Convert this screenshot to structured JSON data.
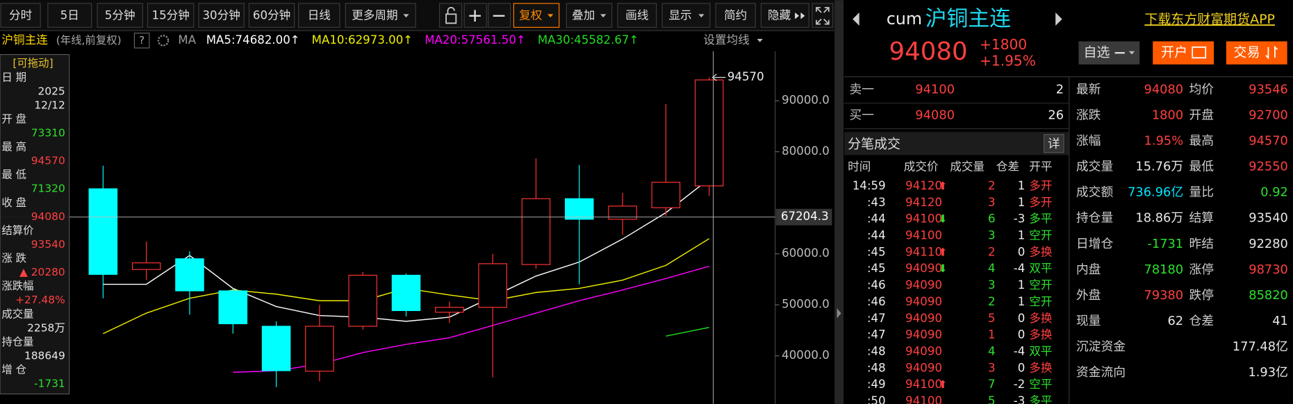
{
  "toolbar": {
    "periods": [
      "分时",
      "5日",
      "5分钟",
      "15分钟",
      "30分钟",
      "60分钟",
      "日线",
      "更多周期"
    ],
    "buttons": [
      "复权",
      "叠加",
      "画线",
      "显示",
      "简约",
      "隐藏"
    ]
  },
  "chart_info": {
    "symbol": "沪铜主连",
    "mode": "(年线,前复权)",
    "help": "?",
    "ma": "MA",
    "settings": "设置均线"
  },
  "info_panel": {
    "drag": "[可拖动]",
    "items": [
      {
        "label": "日 期",
        "values": [
          "2025",
          "12/12"
        ],
        "color": "#e8e8e8"
      },
      {
        "label": "开 盘",
        "values": [
          "73310"
        ],
        "color": "#2ee02e"
      },
      {
        "label": "最 高",
        "values": [
          "94570"
        ],
        "color": "#ff4040"
      },
      {
        "label": "最 低",
        "values": [
          "71320"
        ],
        "color": "#2ee02e"
      },
      {
        "label": "收 盘",
        "values": [
          "94080"
        ],
        "color": "#ff4040"
      },
      {
        "label": "结算价",
        "values": [
          "93540"
        ],
        "color": "#ff4040"
      },
      {
        "label": "涨 跌",
        "values": [
          "▲ 20280"
        ],
        "color": "#ff4040"
      },
      {
        "label": "涨跌幅",
        "values": [
          "+27.48%"
        ],
        "color": "#ff4040"
      },
      {
        "label": "成交量",
        "values": [
          "2258万"
        ],
        "color": "#e8e8e8"
      },
      {
        "label": "持仓量",
        "values": [
          "188649"
        ],
        "color": "#e8e8e8"
      },
      {
        "label": "增 仓",
        "values": [
          "-1731"
        ],
        "color": "#2ee02e"
      }
    ]
  },
  "chart_data": {
    "type": "candlestick",
    "categories": [
      null,
      null,
      null,
      null,
      null,
      null,
      null,
      null,
      null,
      null,
      null,
      null,
      null,
      null,
      null
    ],
    "open": [
      72742,
      56935,
      59032,
      52742,
      45806,
      37000,
      45806,
      55806,
      48548,
      49516,
      57903,
      70806,
      66774,
      69032,
      73310
    ],
    "close": [
      55968,
      58226,
      52742,
      46290,
      37097,
      45806,
      55806,
      48871,
      49516,
      58065,
      70806,
      66774,
      69355,
      74032,
      94080
    ],
    "high": [
      77258,
      62419,
      60484,
      53226,
      46774,
      50000,
      56452,
      56129,
      50645,
      60000,
      78710,
      77419,
      71935,
      89355,
      94570
    ],
    "low": [
      51290,
      54839,
      48065,
      44355,
      33871,
      35000,
      45161,
      47742,
      46452,
      35806,
      57097,
      54032,
      63710,
      67419,
      71320
    ],
    "up_color": "#ff3333",
    "down_color": "#00ffff",
    "series": [
      {
        "name": "MA5:74682.00↑",
        "color": "#ffffff",
        "values": [
          54032,
          54032,
          59677,
          53226,
          49677,
          47903,
          47581,
          46774,
          47581,
          51613,
          55645,
          58387,
          62903,
          68065,
          74682
        ]
      },
      {
        "name": "MA10:62973.00↑",
        "color": "#f0f000",
        "values": [
          44355,
          48387,
          51290,
          52903,
          52097,
          50806,
          50806,
          53226,
          51935,
          50806,
          52419,
          53226,
          54839,
          57742,
          62973
        ]
      },
      {
        "name": "MA20:57561.50↑",
        "color": "#ff00ff",
        "values": [
          null,
          null,
          null,
          36774,
          37097,
          38387,
          40645,
          42258,
          43548,
          45968,
          48387,
          50806,
          52903,
          55161,
          57561.5
        ]
      },
      {
        "name": "MA30:45582.67↑",
        "color": "#22dd22",
        "values": [
          null,
          null,
          null,
          null,
          null,
          null,
          null,
          null,
          null,
          null,
          null,
          null,
          null,
          43871,
          45582.67
        ]
      }
    ],
    "ylim": [
      30600,
      99700
    ],
    "yticks": [
      {
        "value": 40000,
        "label": "40000.0"
      },
      {
        "value": 50000,
        "label": "50000.0"
      },
      {
        "value": 60000,
        "label": "60000.0"
      },
      {
        "value": 80000,
        "label": "80000.0"
      },
      {
        "value": 90000,
        "label": "90000.0"
      }
    ],
    "crosshair": 67204.3
  },
  "quote": {
    "code": "cum",
    "name": "沪铜主连",
    "price": "94080",
    "change": "+1800",
    "change_pct": "+1.95%",
    "app_link": "下载东方财富期货APP",
    "watch": "自选",
    "open_account": "开户",
    "trade": "交易"
  },
  "order_book": [
    [
      "卖一",
      "94100",
      "2"
    ],
    [
      "买一",
      "94080",
      "26"
    ]
  ],
  "ticks": {
    "title": "分笔成交",
    "detail": "详",
    "columns": [
      "时间",
      "成交价",
      "成交量",
      "仓差",
      "开平"
    ],
    "rows": [
      {
        "time": "14:59",
        "price": "94120",
        "arrow": "⬆",
        "arrow_color": "#ff4040",
        "volume": 2,
        "diff": 1,
        "type": "多开",
        "color": "#ff4040"
      },
      {
        "time": ":43",
        "price": "94120",
        "volume": 3,
        "diff": 1,
        "type": "多开",
        "color": "#ff4040"
      },
      {
        "time": ":44",
        "price": "94100",
        "arrow": "⬇",
        "arrow_color": "#2ee02e",
        "volume": 6,
        "diff": -3,
        "type": "多平",
        "color": "#2ee02e"
      },
      {
        "time": ":44",
        "price": "94100",
        "volume": 3,
        "diff": 1,
        "type": "空开",
        "color": "#2ee02e"
      },
      {
        "time": ":45",
        "price": "94110",
        "arrow": "⬆",
        "arrow_color": "#ff4040",
        "volume": 2,
        "diff": 0,
        "type": "多换",
        "color": "#ff4040"
      },
      {
        "time": ":45",
        "price": "94090",
        "arrow": "⬇",
        "arrow_color": "#2ee02e",
        "volume": 4,
        "diff": -4,
        "type": "双平",
        "color": "#2ee02e"
      },
      {
        "time": ":46",
        "price": "94090",
        "volume": 3,
        "diff": 1,
        "type": "空开",
        "color": "#2ee02e"
      },
      {
        "time": ":46",
        "price": "94090",
        "volume": 2,
        "diff": 1,
        "type": "空开",
        "color": "#2ee02e"
      },
      {
        "time": ":47",
        "price": "94090",
        "volume": 5,
        "diff": 0,
        "type": "多换",
        "color": "#ff4040"
      },
      {
        "time": ":47",
        "price": "94090",
        "volume": 1,
        "diff": 0,
        "type": "多换",
        "color": "#ff4040"
      },
      {
        "time": ":48",
        "price": "94090",
        "volume": 4,
        "diff": -4,
        "type": "双平",
        "color": "#2ee02e"
      },
      {
        "time": ":48",
        "price": "94090",
        "volume": 3,
        "diff": 0,
        "type": "多换",
        "color": "#ff4040"
      },
      {
        "time": ":49",
        "price": "94100",
        "arrow": "⬆",
        "arrow_color": "#ff4040",
        "volume": 7,
        "diff": -2,
        "type": "空平",
        "color": "#2ee02e"
      },
      {
        "time": ":50",
        "price": "94100",
        "volume": 5,
        "diff": -3,
        "type": "多平",
        "color": "#2ee02e"
      }
    ]
  },
  "stats": {
    "rows": [
      [
        {
          "label": "最新",
          "value": "94080",
          "color": "#ff4040"
        },
        {
          "label": "均价",
          "value": "93546",
          "color": "#ff4040"
        }
      ],
      [
        {
          "label": "涨跌",
          "value": "1800",
          "color": "#ff4040"
        },
        {
          "label": "开盘",
          "value": "92700",
          "color": "#ff4040"
        }
      ],
      [
        {
          "label": "涨幅",
          "value": "1.95%",
          "color": "#ff4040"
        },
        {
          "label": "最高",
          "value": "94570",
          "color": "#ff4040"
        }
      ],
      [
        {
          "label": "成交量",
          "value": "15.76万",
          "color": "#e8e8e8"
        },
        {
          "label": "最低",
          "value": "92550",
          "color": "#ff4040"
        }
      ],
      [
        {
          "label": "成交额",
          "value": "736.96亿",
          "color": "#00e5ff"
        },
        {
          "label": "量比",
          "value": "0.92",
          "color": "#2ee02e"
        }
      ],
      [
        {
          "label": "持仓量",
          "value": "18.86万",
          "color": "#e8e8e8"
        },
        {
          "label": "结算",
          "value": "93540",
          "color": "#e8e8e8"
        }
      ],
      [
        {
          "label": "日增仓",
          "value": "-1731",
          "color": "#2ee02e"
        },
        {
          "label": "昨结",
          "value": "92280",
          "color": "#e8e8e8"
        }
      ],
      [
        {
          "label": "内盘",
          "value": "78180",
          "color": "#2ee02e"
        },
        {
          "label": "涨停",
          "value": "98730",
          "color": "#ff4040"
        }
      ],
      [
        {
          "label": "外盘",
          "value": "79380",
          "color": "#ff4040"
        },
        {
          "label": "跌停",
          "value": "85820",
          "color": "#2ee02e"
        }
      ],
      [
        {
          "label": "现量",
          "value": "62",
          "color": "#e8e8e8"
        },
        {
          "label": "仓差",
          "value": "41",
          "color": "#e8e8e8"
        }
      ]
    ],
    "wide": [
      {
        "label": "沉淀资金",
        "value": "177.48亿",
        "color": "#e8e8e8"
      },
      {
        "label": "资金流向",
        "value": "1.93亿",
        "color": "#e8e8e8"
      }
    ]
  }
}
